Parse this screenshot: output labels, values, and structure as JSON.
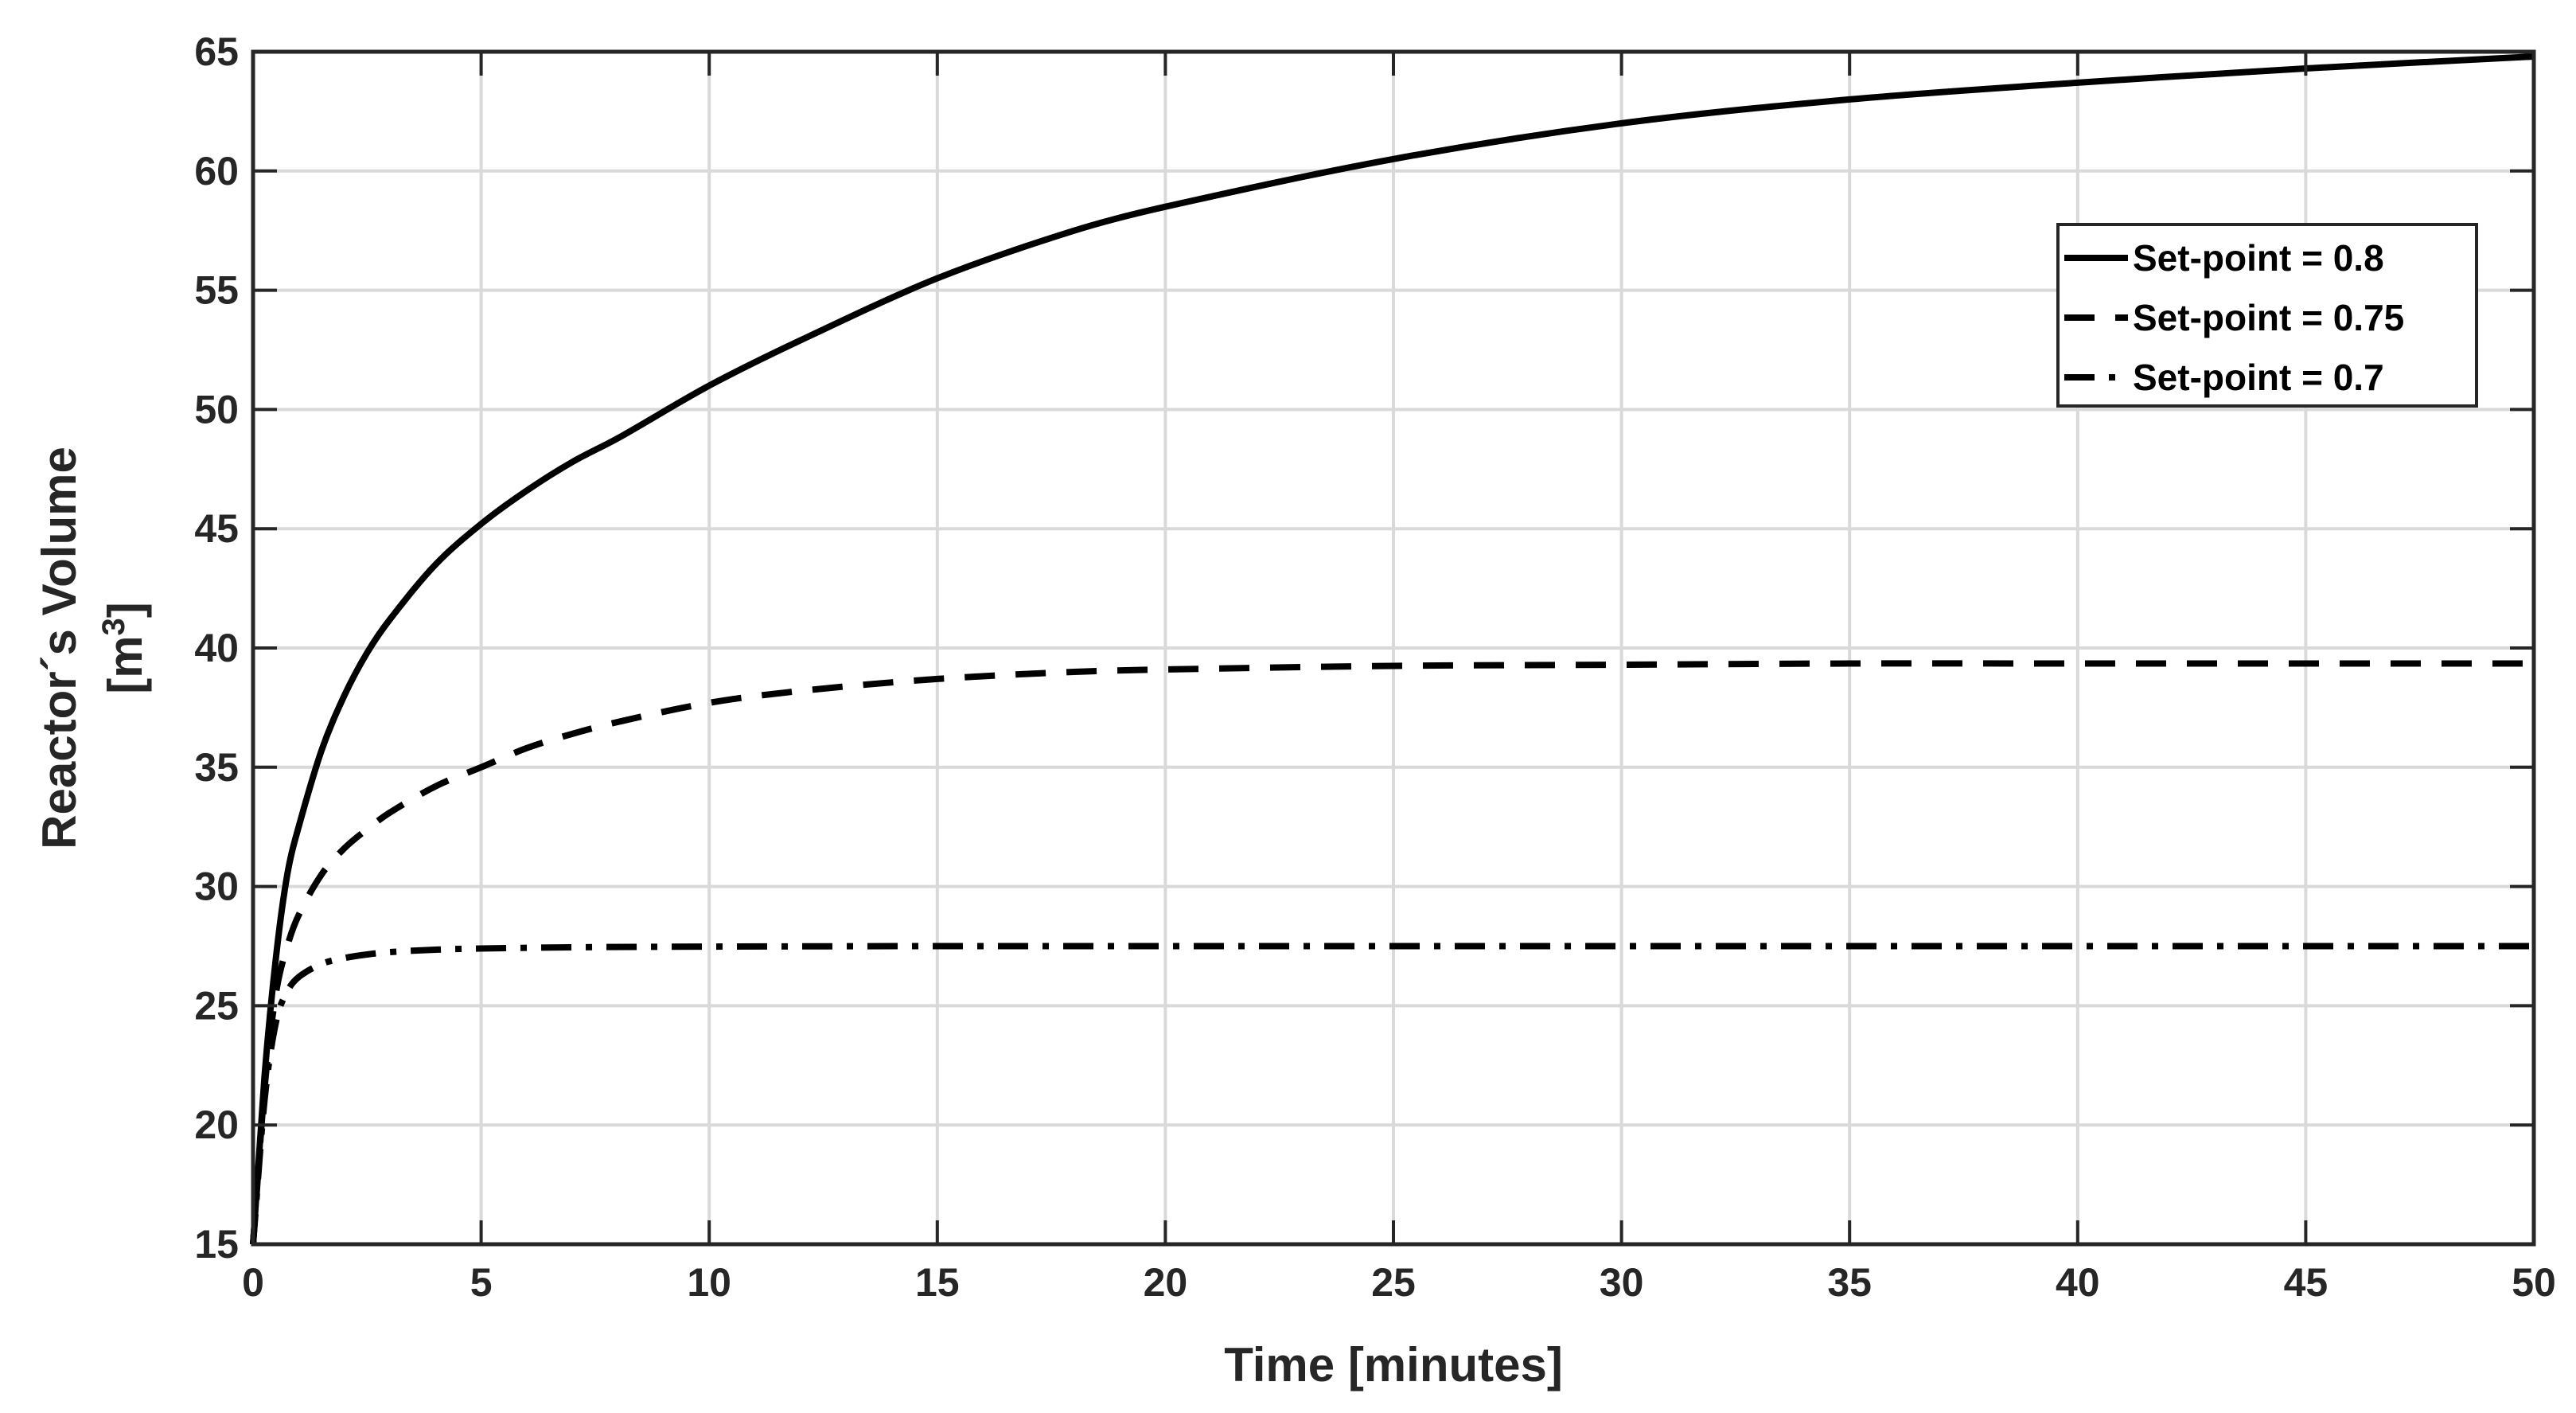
{
  "chart_data": {
    "type": "line",
    "xlabel": "Time [minutes]",
    "ylabel_line1": "Reactor´s Volume",
    "ylabel_line2_base": "[m",
    "ylabel_line2_sup": "3",
    "ylabel_line2_close": "]",
    "xlim": [
      0,
      50
    ],
    "ylim": [
      15,
      65
    ],
    "xticks": [
      0,
      5,
      10,
      15,
      20,
      25,
      30,
      35,
      40,
      45,
      50
    ],
    "yticks": [
      15,
      20,
      25,
      30,
      35,
      40,
      45,
      50,
      55,
      60,
      65
    ],
    "grid": true,
    "legend_position": "top-right",
    "series": [
      {
        "name": "Set-point = 0.8",
        "line_style": "solid",
        "x": [
          0,
          0.25,
          0.5,
          0.75,
          1,
          1.5,
          2,
          2.5,
          3,
          4,
          5,
          6,
          7,
          8,
          10,
          12,
          15,
          18,
          20,
          25,
          30,
          35,
          40,
          45,
          50
        ],
        "y": [
          15,
          22,
          27,
          30.5,
          32.5,
          35.7,
          38.0,
          39.8,
          41.2,
          43.5,
          45.2,
          46.6,
          47.8,
          48.8,
          51.0,
          52.9,
          55.5,
          57.5,
          58.5,
          60.5,
          62.0,
          63.0,
          63.7,
          64.3,
          64.8
        ]
      },
      {
        "name": "Set-point = 0.75",
        "line_style": "dashed",
        "x": [
          0,
          0.25,
          0.5,
          0.75,
          1,
          1.5,
          2,
          2.5,
          3,
          4,
          5,
          6,
          7,
          8,
          10,
          12,
          15,
          18,
          20,
          25,
          30,
          35,
          40,
          45,
          50
        ],
        "y": [
          15,
          21.5,
          25.5,
          27.5,
          28.8,
          30.5,
          31.6,
          32.4,
          33.1,
          34.2,
          35.0,
          35.8,
          36.4,
          36.9,
          37.7,
          38.2,
          38.7,
          39.0,
          39.1,
          39.25,
          39.3,
          39.35,
          39.35,
          39.35,
          39.35
        ]
      },
      {
        "name": "Set-point = 0.7",
        "line_style": "dash-dot",
        "x": [
          0,
          0.25,
          0.5,
          0.75,
          1,
          1.5,
          2,
          2.5,
          3,
          4,
          5,
          7,
          10,
          15,
          20,
          25,
          30,
          35,
          40,
          45,
          50
        ],
        "y": [
          15,
          21.0,
          24.3,
          25.6,
          26.2,
          26.75,
          27.0,
          27.15,
          27.25,
          27.35,
          27.4,
          27.45,
          27.48,
          27.5,
          27.5,
          27.5,
          27.5,
          27.5,
          27.5,
          27.5,
          27.5
        ]
      }
    ]
  }
}
